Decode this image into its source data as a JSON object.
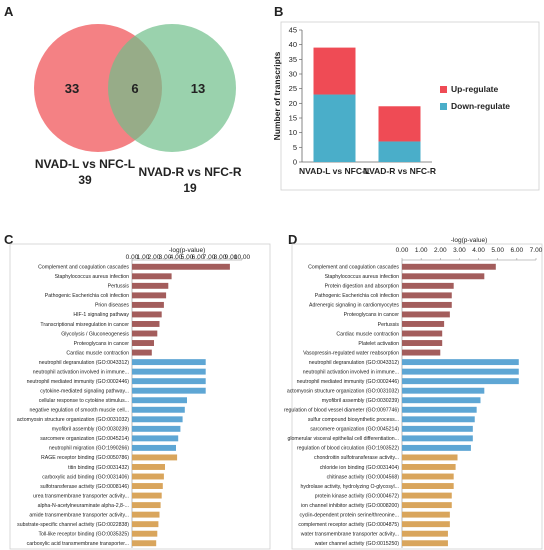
{
  "panel_labels": {
    "a": "A",
    "b": "B",
    "c": "C",
    "d": "D"
  },
  "venn": {
    "left_only": "33",
    "overlap": "6",
    "right_only": "13",
    "left_name": "NVAD-L vs NFC-L",
    "left_total": "39",
    "right_name": "NVAD-R vs NFC-R",
    "right_total": "19",
    "colors": {
      "left": "#f26b6e",
      "right": "#6fbf8a"
    }
  },
  "chart_data": [
    {
      "id": "B",
      "type": "bar",
      "stacked": true,
      "categories": [
        "NVAD-L vs NFC-L",
        "NVAD-R vs NFC-R"
      ],
      "series": [
        {
          "name": "Down-regulate",
          "values": [
            23,
            7
          ],
          "color": "#4aaec9"
        },
        {
          "name": "Up-regulate",
          "values": [
            16,
            12
          ],
          "color": "#ef4b55"
        }
      ],
      "ylabel": "Number of transcripts",
      "ylim": [
        0,
        45
      ],
      "yticks": [
        0,
        5,
        10,
        15,
        20,
        25,
        30,
        35,
        40,
        45
      ],
      "legend": "right",
      "legend_entries": [
        "Up-regulate",
        "Down-regulate"
      ]
    },
    {
      "id": "C",
      "type": "bar",
      "orientation": "horizontal",
      "xlabel": "-log(p-value)",
      "xlim": [
        0,
        10
      ],
      "xticks": [
        "0.00",
        "1.00",
        "2.00",
        "3.00",
        "4.00",
        "5.00",
        "6.00",
        "7.00",
        "8.00",
        "9.00",
        "10.00"
      ],
      "categories": [
        "Complement and coagulation cascades",
        "Staphylococcus aureus infection",
        "Pertussis",
        "Pathogenic Escherichia coli infection",
        "Prion diseases",
        "HIF-1 signaling pathway",
        "Transcriptional misregulation in cancer",
        "Glycolysis / Gluconeogenesis",
        "Proteoglycans in cancer",
        "Cardiac muscle contraction",
        "neutrophil degranulation (GO:0043312)",
        "neutrophil activation involved in immune...",
        "neutrophil mediated immunity (GO:0002446)",
        "cytokine-mediated signaling pathway...",
        "cellular response to cytokine stimulus...",
        "negative regulation of smooth muscle cell...",
        "actomyosin structure organization (GO:0031032)",
        "myofibril assembly (GO:0030239)",
        "sarcomere organization (GO:0045214)",
        "neutrophil migration (GO:1990266)",
        "RAGE receptor binding (GO:0050786)",
        "titin binding (GO:0031432)",
        "carboxylic acid binding (GO:0031406)",
        "sulfotransferase activity (GO:0008146)",
        "urea transmembrane transporter activity...",
        "alpha-N-acetylneuraminate alpha-2,8-...",
        "amide transmembrane transporter activity...",
        "substrate-specific channel activity (GO:0022838)",
        "Toll-like receptor binding (GO:0035325)",
        "carboxylic acid transmembrane transporter..."
      ],
      "values": [
        8.9,
        3.6,
        3.3,
        3.1,
        2.9,
        2.7,
        2.5,
        2.3,
        2.0,
        1.8,
        6.7,
        6.7,
        6.7,
        6.7,
        5.0,
        4.8,
        4.6,
        4.4,
        4.2,
        4.0,
        4.1,
        3.0,
        2.9,
        2.8,
        2.7,
        2.6,
        2.5,
        2.4,
        2.3,
        2.2
      ],
      "groups": [
        {
          "start": 0,
          "end": 9,
          "color": "#a35d5c"
        },
        {
          "start": 10,
          "end": 19,
          "color": "#5ea6d4"
        },
        {
          "start": 20,
          "end": 29,
          "color": "#d9a55c"
        }
      ]
    },
    {
      "id": "D",
      "type": "bar",
      "orientation": "horizontal",
      "xlabel": "-log(p-value)",
      "xlim": [
        0,
        7
      ],
      "xticks": [
        "0.00",
        "1.00",
        "2.00",
        "3.00",
        "4.00",
        "5.00",
        "6.00",
        "7.00"
      ],
      "categories": [
        "Complement and coagulation cascades",
        "Staphylococcus aureus infection",
        "Protein digestion and absorption",
        "Pathogenic Escherichia coli infection",
        "Adrenergic signaling in cardiomyocytes",
        "Proteoglycans in cancer",
        "Pertussis",
        "Cardiac muscle contraction",
        "Platelet activation",
        "Vasopressin-regulated water reabsorption",
        "neutrophil degranulation (GO:0043312)",
        "neutrophil activation involved in immune...",
        "neutrophil mediated immunity (GO:0002446)",
        "actomyosin structure organization (GO:0031032)",
        "myofibril assembly (GO:0030239)",
        "regulation of blood vessel diameter (GO:0097746)",
        "sulfur compound biosynthetic process...",
        "sarcomere organization (GO:0045214)",
        "glomerular visceral epithelial cell differentiation...",
        "regulation of blood circulation (GO:1903522)",
        "chondroitin sulfotransferase activity...",
        "chloride ion binding (GO:0031404)",
        "chitinase activity (GO:0004568)",
        "hydrolase activity, hydrolyzing O-glycosyl...",
        "protein kinase activity (GO:0004672)",
        "ion channel inhibitor activity (GO:0008200)",
        "cyclin-dependent protein serine/threonine...",
        "complement receptor activity (GO:0004875)",
        "water transmembrane transporter activity...",
        "water channel activity (GO:0015250)"
      ],
      "values": [
        4.9,
        4.3,
        2.7,
        2.6,
        2.6,
        2.5,
        2.2,
        2.1,
        2.1,
        2.0,
        6.1,
        6.1,
        6.1,
        4.3,
        4.1,
        3.9,
        3.8,
        3.7,
        3.7,
        3.6,
        2.9,
        2.8,
        2.7,
        2.7,
        2.6,
        2.6,
        2.5,
        2.5,
        2.4,
        2.4
      ],
      "groups": [
        {
          "start": 0,
          "end": 9,
          "color": "#a35d5c"
        },
        {
          "start": 10,
          "end": 19,
          "color": "#5ea6d4"
        },
        {
          "start": 20,
          "end": 29,
          "color": "#d9a55c"
        }
      ]
    }
  ]
}
